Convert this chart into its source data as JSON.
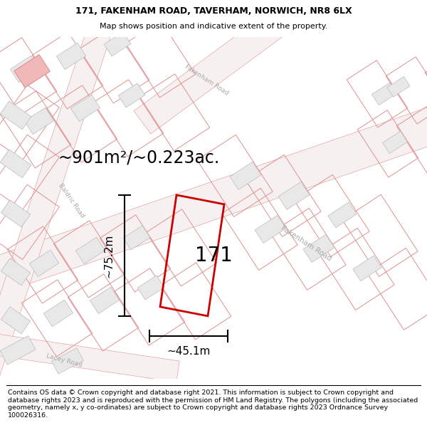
{
  "title": "171, FAKENHAM ROAD, TAVERHAM, NORWICH, NR8 6LX",
  "subtitle": "Map shows position and indicative extent of the property.",
  "footer": "Contains OS data © Crown copyright and database right 2021. This information is subject to Crown copyright and database rights 2023 and is reproduced with the permission of HM Land Registry. The polygons (including the associated geometry, namely x, y co-ordinates) are subject to Crown copyright and database rights 2023 Ordnance Survey 100026316.",
  "area_label": "~901m²/~0.223ac.",
  "width_label": "~45.1m",
  "height_label": "~75.2m",
  "plot_number": "171",
  "bg_color": "#ffffff",
  "building_fill": "#e8e8e8",
  "building_stroke": "#bbbbbb",
  "parcel_stroke": "#e09090",
  "highlight_fill": "#f0b8b8",
  "highlight_stroke": "#cc0000",
  "road_color": "#f7f0f0",
  "title_fontsize": 9,
  "subtitle_fontsize": 8,
  "area_fontsize": 17,
  "dim_fontsize": 11,
  "plot_fontsize": 20,
  "road_label_color": "#aaaaaa",
  "road_label_size": 7
}
